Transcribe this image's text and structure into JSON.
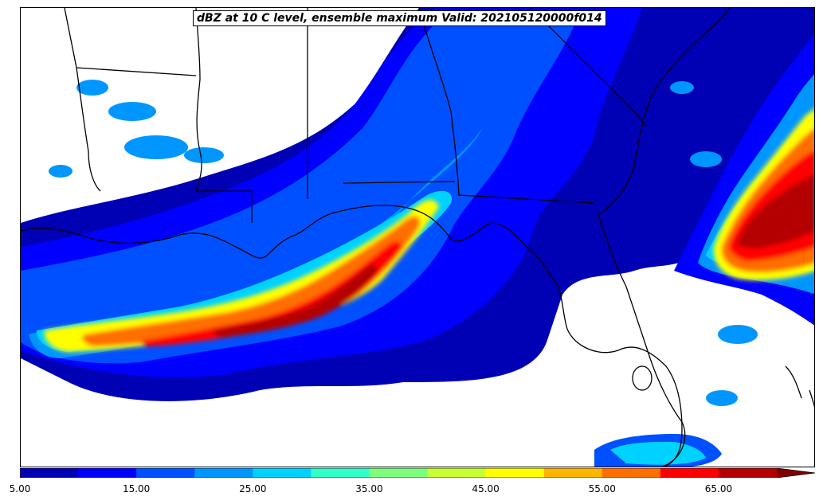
{
  "title": "dBZ at 10 C level, ensemble maximum Valid: 202105120000f014",
  "colorbar": {
    "levels": [
      5,
      10,
      15,
      20,
      25,
      30,
      35,
      40,
      45,
      50,
      55,
      60,
      65,
      70
    ],
    "colors": [
      "#0000b4",
      "#0000ff",
      "#0050ff",
      "#0096ff",
      "#00d2ff",
      "#32ffc8",
      "#7dff7d",
      "#c8ff32",
      "#ffff00",
      "#ffb400",
      "#ff6e00",
      "#ff0000",
      "#b40000"
    ],
    "extend_color": "#820000",
    "tick_labels": [
      "5.00",
      "15.00",
      "25.00",
      "35.00",
      "45.00",
      "55.00",
      "65.00"
    ]
  },
  "map": {
    "region": "Southeastern United States and Gulf of Mexico",
    "field": "reflectivity",
    "borders_color": "#000000"
  }
}
